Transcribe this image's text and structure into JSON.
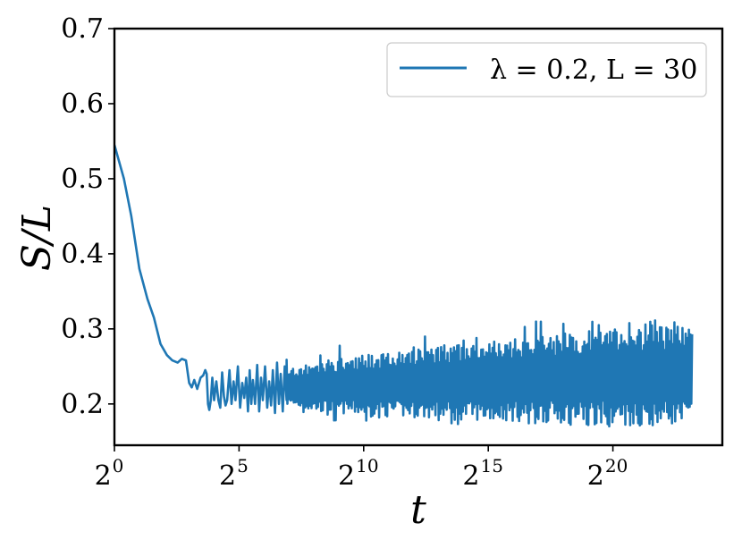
{
  "chart_data": {
    "type": "line",
    "xscale": "log2",
    "xlabel": "t",
    "ylabel": "S/L",
    "xlim": [
      1,
      22000000
    ],
    "ylim": [
      0.145,
      0.7
    ],
    "x_ticks": [
      {
        "base": "2",
        "exp": "0",
        "value": 1
      },
      {
        "base": "2",
        "exp": "5",
        "value": 32
      },
      {
        "base": "2",
        "exp": "10",
        "value": 1024
      },
      {
        "base": "2",
        "exp": "15",
        "value": 32768
      },
      {
        "base": "2",
        "exp": "20",
        "value": 1048576
      }
    ],
    "y_ticks": [
      {
        "label": "0.2",
        "value": 0.2
      },
      {
        "label": "0.3",
        "value": 0.3
      },
      {
        "label": "0.4",
        "value": 0.4
      },
      {
        "label": "0.5",
        "value": 0.5
      },
      {
        "label": "0.6",
        "value": 0.6
      },
      {
        "label": "0.7",
        "value": 0.7
      }
    ],
    "grid": false,
    "legend_position": "top-right",
    "series": [
      {
        "name": "λ = 0.2, L = 30",
        "color": "#1f77b4",
        "x": [
          1.0,
          1.3,
          1.6,
          2.0,
          2.5,
          3.0,
          3.6,
          4.3,
          5.0,
          5.8,
          6.5,
          7.3,
          8.0,
          8.6,
          9.2,
          10.0,
          11.0,
          11.8,
          12.5,
          13.0,
          13.5,
          14.0,
          14.6,
          15.2,
          16.0,
          17.0,
          18.0,
          19.0,
          20.0,
          21.0,
          22.0,
          23.0,
          24.5,
          26.0,
          27.5,
          29.0,
          31.0,
          33.0,
          35.0,
          37.0,
          39.0,
          41.0,
          43.0,
          45.0,
          47.0,
          50.0,
          53.0,
          56.0,
          59.0,
          62.0,
          66.0,
          70.0,
          74.0,
          78.0,
          82.0,
          87.0,
          92.0,
          97.0,
          102.0,
          108.0,
          114.0,
          120.0
        ],
        "y": [
          0.545,
          0.5,
          0.45,
          0.38,
          0.34,
          0.315,
          0.28,
          0.265,
          0.258,
          0.255,
          0.26,
          0.258,
          0.228,
          0.222,
          0.232,
          0.22,
          0.235,
          0.238,
          0.245,
          0.24,
          0.2,
          0.192,
          0.205,
          0.235,
          0.205,
          0.23,
          0.205,
          0.195,
          0.242,
          0.21,
          0.198,
          0.205,
          0.245,
          0.2,
          0.23,
          0.205,
          0.25,
          0.195,
          0.228,
          0.208,
          0.235,
          0.19,
          0.245,
          0.2,
          0.232,
          0.2,
          0.252,
          0.19,
          0.235,
          0.205,
          0.25,
          0.195,
          0.23,
          0.198,
          0.245,
          0.188,
          0.255,
          0.2,
          0.24,
          0.19,
          0.25,
          0.205
        ],
        "envelope": {
          "x": [
            120,
            256,
            1024,
            4096,
            16384,
            65536,
            262144,
            1048576,
            4194304,
            9500000
          ],
          "upper": [
            0.245,
            0.255,
            0.265,
            0.272,
            0.28,
            0.287,
            0.294,
            0.3,
            0.303,
            0.305
          ],
          "lower": [
            0.198,
            0.19,
            0.185,
            0.182,
            0.179,
            0.177,
            0.175,
            0.174,
            0.173,
            0.172
          ],
          "spike_max": [
            0.26,
            0.275,
            0.29,
            0.298,
            0.306,
            0.313,
            0.314,
            0.313,
            0.313,
            0.31
          ],
          "spike_min": [
            0.182,
            0.178,
            0.176,
            0.174,
            0.172,
            0.171,
            0.17,
            0.17,
            0.17,
            0.171
          ]
        }
      }
    ]
  }
}
